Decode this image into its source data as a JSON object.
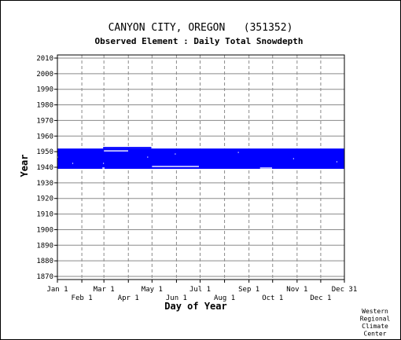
{
  "chart_data": {
    "type": "heatmap",
    "title": "CANYON CITY, OREGON   (351352)",
    "subtitle": "Observed Element : Daily Total Snowdepth",
    "xlabel": "Day of Year",
    "ylabel": "Year",
    "ylim": [
      1870,
      2010
    ],
    "xlim": [
      1,
      365
    ],
    "y_ticks": [
      1870,
      1880,
      1890,
      1900,
      1910,
      1920,
      1930,
      1940,
      1950,
      1960,
      1970,
      1980,
      1990,
      2000,
      2010
    ],
    "x_ticks_top": [
      {
        "label": "Jan 1",
        "day": 1
      },
      {
        "label": "Mar 1",
        "day": 60
      },
      {
        "label": "May 1",
        "day": 121
      },
      {
        "label": "Jul 1",
        "day": 182
      },
      {
        "label": "Sep 1",
        "day": 244
      },
      {
        "label": "Nov 1",
        "day": 305
      },
      {
        "label": "Dec 31",
        "day": 365
      }
    ],
    "x_ticks_bottom": [
      {
        "label": "Feb 1",
        "day": 32
      },
      {
        "label": "Apr 1",
        "day": 91
      },
      {
        "label": "Jun 1",
        "day": 152
      },
      {
        "label": "Aug 1",
        "day": 213
      },
      {
        "label": "Oct 1",
        "day": 274
      },
      {
        "label": "Dec 1",
        "day": 335
      }
    ],
    "grid": true,
    "record_color": "#0000ff",
    "observed_spans": [
      {
        "year_start": 1939,
        "year_end": 1952,
        "day_start": 1,
        "day_end": 365
      },
      {
        "year_start": 1952,
        "year_end": 1953,
        "day_start": 59,
        "day_end": 120
      }
    ],
    "gaps": [
      {
        "year": 1952,
        "day_start": 1,
        "day_end": 2
      },
      {
        "year": 1952,
        "day_start": 4,
        "day_end": 7
      },
      {
        "year": 1952,
        "day_start": 9,
        "day_end": 12
      },
      {
        "year": 1952,
        "day_start": 14,
        "day_end": 16
      },
      {
        "year": 1952,
        "day_start": 18,
        "day_end": 20
      },
      {
        "year": 1952,
        "day_start": 23,
        "day_end": 26
      },
      {
        "year": 1952,
        "day_start": 28,
        "day_end": 30
      },
      {
        "year": 1952,
        "day_start": 32,
        "day_end": 35
      },
      {
        "year": 1952,
        "day_start": 37,
        "day_end": 40
      },
      {
        "year": 1952,
        "day_start": 42,
        "day_end": 44
      },
      {
        "year": 1952,
        "day_start": 47,
        "day_end": 50
      },
      {
        "year": 1952,
        "day_start": 52,
        "day_end": 55
      },
      {
        "year": 1952,
        "day_start": 120,
        "day_end": 180
      },
      {
        "year": 1952,
        "day_start": 182,
        "day_end": 250
      },
      {
        "year": 1952,
        "day_start": 252,
        "day_end": 330
      },
      {
        "year": 1952,
        "day_start": 332,
        "day_end": 352
      },
      {
        "year": 1952,
        "day_start": 354,
        "day_end": 358
      },
      {
        "year": 1952,
        "day_start": 360,
        "day_end": 363
      },
      {
        "year": 1950,
        "day_start": 60,
        "day_end": 90
      },
      {
        "year": 1940,
        "day_start": 121,
        "day_end": 180
      },
      {
        "year": 1939,
        "day_start": 258,
        "day_end": 273
      },
      {
        "year": 1946,
        "day_start": 1,
        "day_end": 1
      },
      {
        "year": 1942,
        "day_start": 20,
        "day_end": 20
      },
      {
        "year": 1946,
        "day_start": 115,
        "day_end": 115
      },
      {
        "year": 1939,
        "day_start": 58,
        "day_end": 60
      },
      {
        "year": 1942,
        "day_start": 59,
        "day_end": 59
      },
      {
        "year": 1948,
        "day_start": 150,
        "day_end": 150
      },
      {
        "year": 1949,
        "day_start": 230,
        "day_end": 230
      },
      {
        "year": 1945,
        "day_start": 300,
        "day_end": 300
      },
      {
        "year": 1943,
        "day_start": 355,
        "day_end": 355
      }
    ]
  },
  "credit": [
    "Western",
    "Regional",
    "Climate",
    "Center"
  ]
}
